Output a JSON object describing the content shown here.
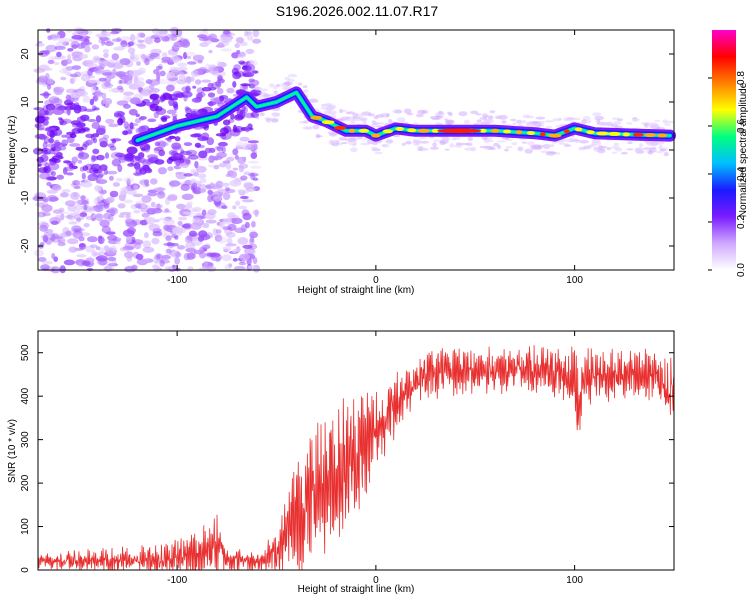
{
  "figure": {
    "title": "S196.2026.002.11.07.R17"
  },
  "chart_data": [
    {
      "type": "heatmap",
      "name": "spectrogram",
      "xlabel": "Height of straight line (km)",
      "ylabel": "Frequency (Hz)",
      "xlim": [
        -170,
        150
      ],
      "ylim": [
        -25,
        25
      ],
      "x_ticks": [
        -100,
        0,
        100
      ],
      "y_ticks": [
        -20,
        -10,
        0,
        10,
        20
      ],
      "colorbar": {
        "label": "Normalized spectral amplitude",
        "range": [
          0,
          1
        ],
        "ticks": [
          0.0,
          0.2,
          0.4,
          0.6,
          0.8
        ],
        "tick_labels": [
          "0.0",
          "0.2",
          "0.4",
          "0.6",
          "0.8"
        ],
        "colors": [
          "#ffffff",
          "#cfa8ff",
          "#7a1cff",
          "#1a1aff",
          "#00bfff",
          "#00ff7f",
          "#ffff00",
          "#ff8000",
          "#ff0000",
          "#ff00cc"
        ]
      },
      "ridge": {
        "x": [
          -120,
          -100,
          -80,
          -65,
          -60,
          -50,
          -40,
          -32,
          -25,
          -15,
          -5,
          0,
          10,
          20,
          40,
          60,
          80,
          90,
          100,
          110,
          130,
          148
        ],
        "y": [
          2,
          5,
          7,
          11,
          9,
          10,
          12,
          7,
          6,
          4,
          4,
          3,
          4.5,
          4,
          4,
          4,
          3.5,
          3,
          4.5,
          3.5,
          3.2,
          3
        ]
      }
    },
    {
      "type": "line",
      "name": "snr",
      "xlabel": "Height of straight line (km)",
      "ylabel": "SNR (10 * v/v)",
      "xlim": [
        -170,
        150
      ],
      "ylim": [
        0,
        550
      ],
      "x_ticks": [
        -100,
        0,
        100
      ],
      "y_ticks": [
        0,
        100,
        200,
        300,
        400,
        500
      ],
      "color": "#e83030",
      "envelope": {
        "x": [
          -170,
          -110,
          -90,
          -80,
          -75,
          -60,
          -50,
          -40,
          -30,
          -20,
          -10,
          0,
          10,
          20,
          30,
          50,
          70,
          90,
          100,
          102,
          104,
          110,
          130,
          140,
          148,
          150
        ],
        "mean": [
          20,
          22,
          35,
          60,
          25,
          20,
          40,
          120,
          190,
          220,
          260,
          320,
          380,
          440,
          455,
          460,
          460,
          455,
          440,
          380,
          440,
          450,
          445,
          450,
          410,
          430
        ],
        "amplitude": [
          15,
          30,
          50,
          60,
          25,
          20,
          40,
          120,
          130,
          140,
          130,
          80,
          60,
          50,
          50,
          45,
          45,
          50,
          60,
          100,
          60,
          50,
          50,
          55,
          60,
          50
        ]
      }
    }
  ]
}
